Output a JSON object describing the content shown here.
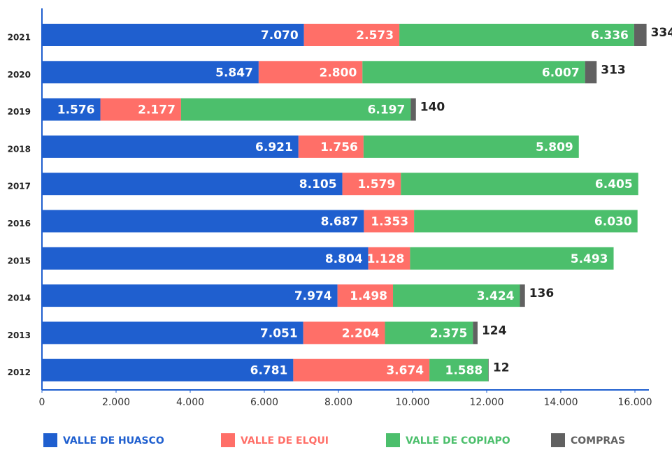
{
  "chart_data": {
    "type": "stacked-barh",
    "categories": [
      "2021",
      "2020",
      "2019",
      "2018",
      "2017",
      "2016",
      "2015",
      "2014",
      "2013",
      "2012"
    ],
    "series": [
      {
        "name": "VALLE DE HUASCO",
        "color": "#1f5fcf",
        "values": [
          7070,
          5847,
          1576,
          6921,
          8105,
          8687,
          8804,
          7974,
          7051,
          6781
        ],
        "value_labels": [
          "7.070",
          "5.847",
          "1.576",
          "6.921",
          "8.105",
          "8.687",
          "8.804",
          "7.974",
          "7.051",
          "6.781"
        ]
      },
      {
        "name": "VALLE DE ELQUI",
        "color": "#ff6f68",
        "values": [
          2573,
          2800,
          2177,
          1756,
          1579,
          1353,
          1128,
          1498,
          2204,
          3674
        ],
        "value_labels": [
          "2.573",
          "2.800",
          "2.177",
          "1.756",
          "1.579",
          "1.353",
          "1.128",
          "1.498",
          "2.204",
          "3.674"
        ]
      },
      {
        "name": "VALLE DE COPIAPO",
        "color": "#4cbf6c",
        "values": [
          6336,
          6007,
          6197,
          5809,
          6405,
          6030,
          5493,
          3424,
          2375,
          1588
        ],
        "value_labels": [
          "6.336",
          "6.007",
          "6.197",
          "5.809",
          "6.405",
          "6.030",
          "5.493",
          "3.424",
          "2.375",
          "1.588"
        ]
      },
      {
        "name": "COMPRAS",
        "color": "#616161",
        "values": [
          334,
          313,
          140,
          null,
          null,
          null,
          null,
          136,
          124,
          12
        ]
      }
    ],
    "xlim": [
      0,
      16000
    ],
    "xticks": [
      0,
      {
        "value": 2000,
        "label": "2.000"
      },
      {
        "value": 4000,
        "label": "4.000"
      },
      {
        "value": 6000,
        "label": "6.000"
      },
      {
        "value": 8000,
        "label": "8.000"
      },
      {
        "value": 10000,
        "label": "10.000"
      },
      {
        "value": 12000,
        "label": "12.000"
      },
      {
        "value": 14000,
        "label": "14.000"
      },
      {
        "value": 16000,
        "label": "16.000"
      }
    ],
    "legend": "bottom"
  }
}
